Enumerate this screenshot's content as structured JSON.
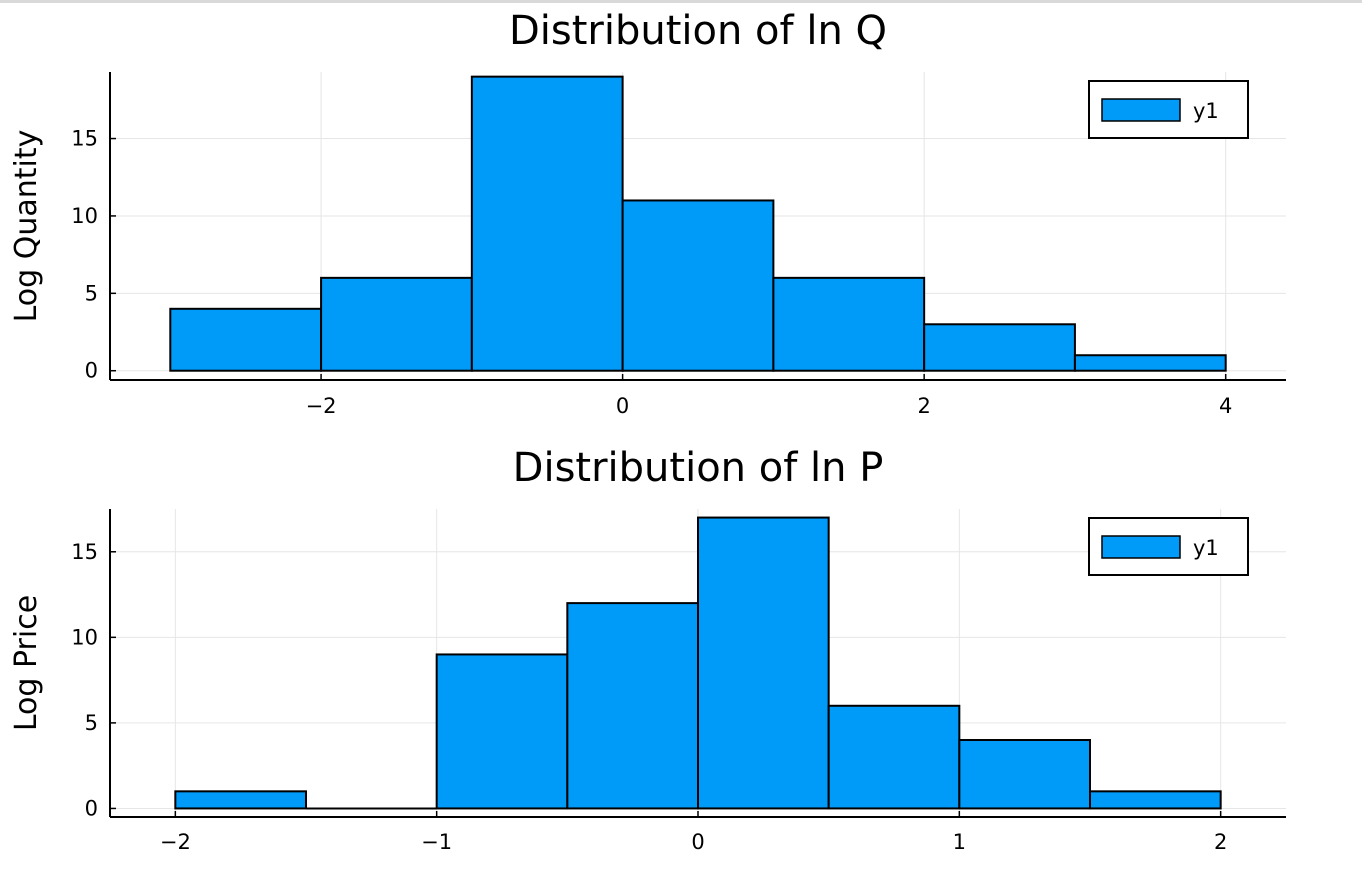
{
  "chart_data": [
    {
      "type": "bar",
      "title": "Distribution of ln Q",
      "xlabel": "",
      "ylabel": "Log Quantity",
      "xlim": [
        -3.4,
        4.4
      ],
      "ylim": [
        -0.6,
        19.3
      ],
      "xticks": [
        -2,
        0,
        2,
        4
      ],
      "xtick_labels": [
        "−2",
        "0",
        "2",
        "4"
      ],
      "yticks": [
        0,
        5,
        10,
        15
      ],
      "ytick_labels": [
        "0",
        "5",
        "10",
        "15"
      ],
      "bins": [
        {
          "start": -3,
          "end": -2,
          "count": 4
        },
        {
          "start": -2,
          "end": -1,
          "count": 6
        },
        {
          "start": -1,
          "end": 0,
          "count": 19
        },
        {
          "start": 0,
          "end": 1,
          "count": 11
        },
        {
          "start": 1,
          "end": 2,
          "count": 6
        },
        {
          "start": 2,
          "end": 3,
          "count": 3
        },
        {
          "start": 3,
          "end": 4,
          "count": 1
        }
      ],
      "series": [
        {
          "name": "y1",
          "color": "#009af9"
        }
      ],
      "legend": "top-right",
      "grid": true
    },
    {
      "type": "bar",
      "title": "Distribution of ln P",
      "xlabel": "",
      "ylabel": "Log Price",
      "xlim": [
        -2.25,
        2.25
      ],
      "ylim": [
        -0.5,
        17.5
      ],
      "xticks": [
        -2,
        -1,
        0,
        1,
        2
      ],
      "xtick_labels": [
        "−2",
        "−1",
        "0",
        "1",
        "2"
      ],
      "yticks": [
        0,
        5,
        10,
        15
      ],
      "ytick_labels": [
        "0",
        "5",
        "10",
        "15"
      ],
      "bins": [
        {
          "start": -2,
          "end": -1.5,
          "count": 1
        },
        {
          "start": -1.5,
          "end": -1,
          "count": 0
        },
        {
          "start": -1,
          "end": -0.5,
          "count": 9
        },
        {
          "start": -0.5,
          "end": 0,
          "count": 12
        },
        {
          "start": 0,
          "end": 0.5,
          "count": 17
        },
        {
          "start": 0.5,
          "end": 1,
          "count": 6
        },
        {
          "start": 1,
          "end": 1.5,
          "count": 4
        },
        {
          "start": 1.5,
          "end": 2,
          "count": 1
        }
      ],
      "series": [
        {
          "name": "y1",
          "color": "#009af9"
        }
      ],
      "legend": "top-right",
      "grid": true
    }
  ]
}
